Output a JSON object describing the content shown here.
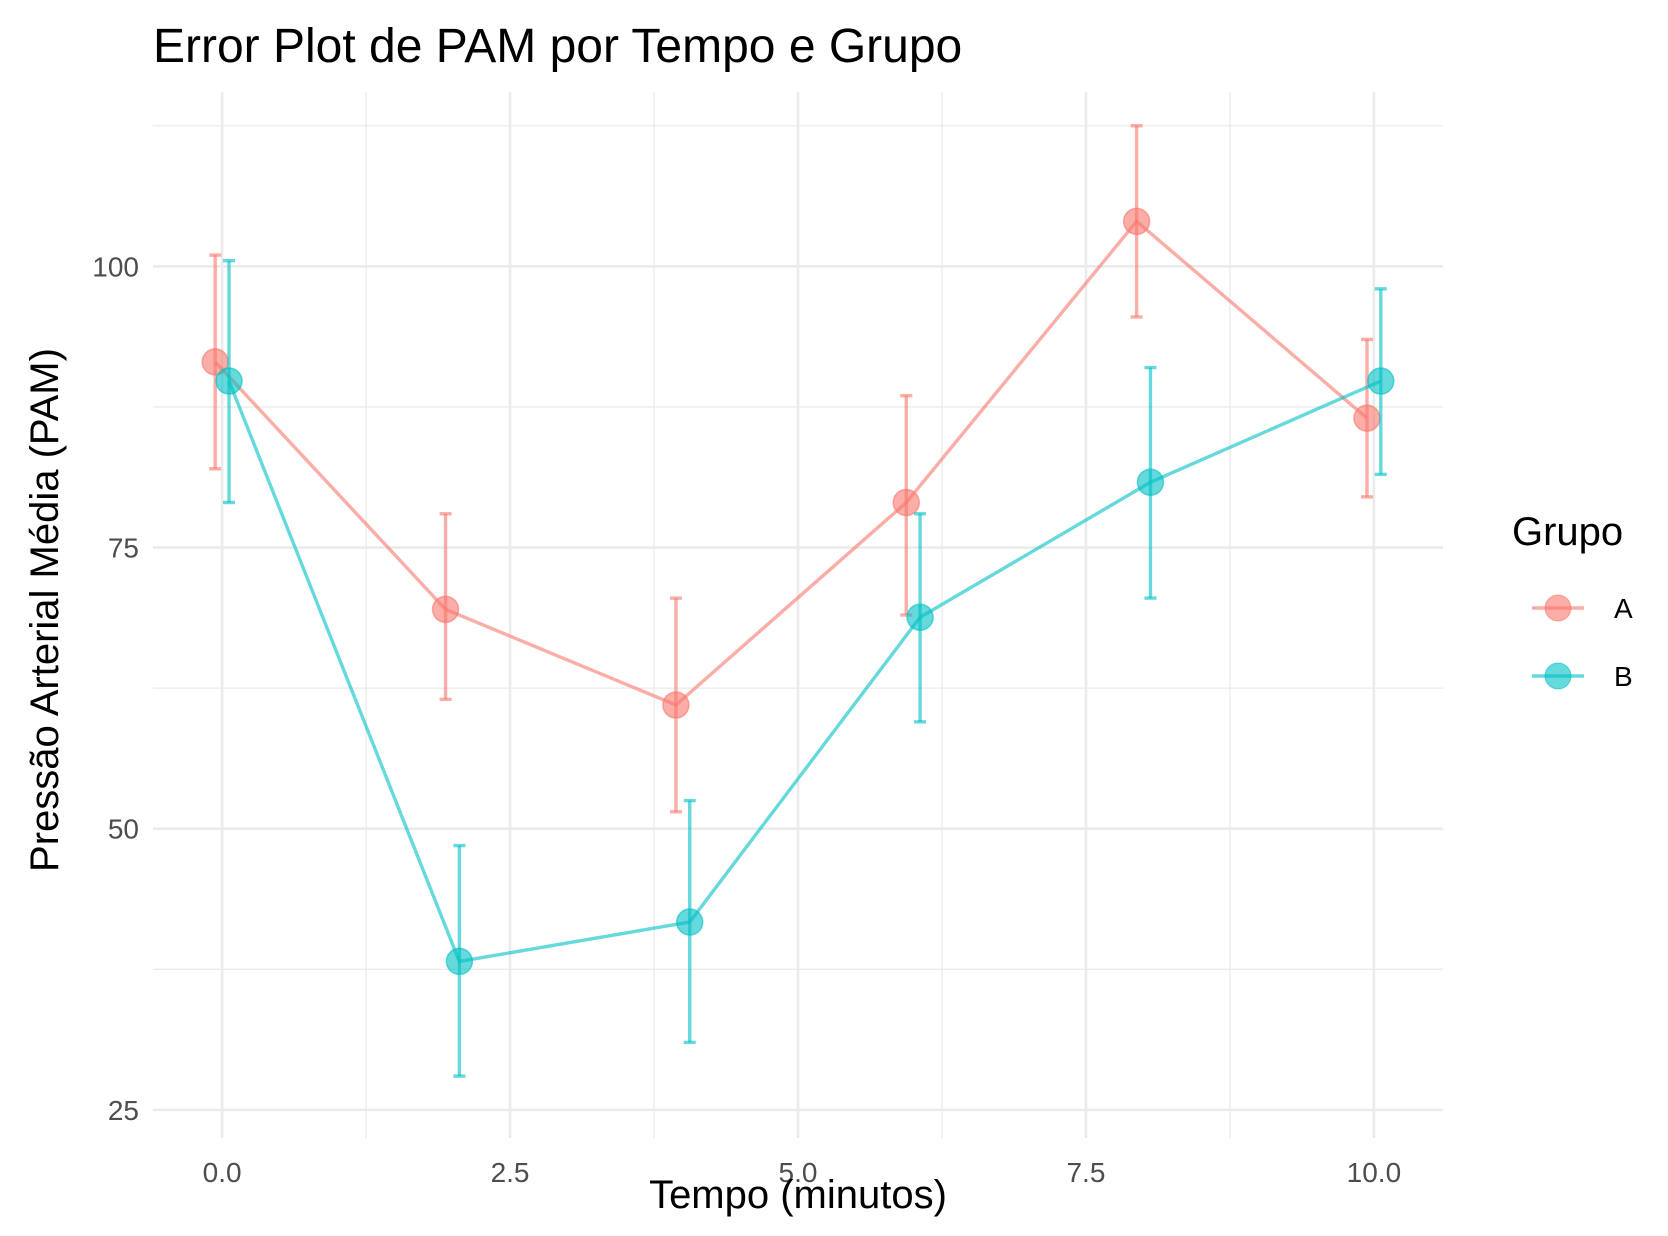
{
  "chart_data": {
    "type": "line",
    "title": "Error Plot de PAM por Tempo e Grupo",
    "xlabel": "Tempo (minutos)",
    "ylabel": "Pressão Arterial Média (PAM)",
    "xlim": [
      -0.6,
      10.6
    ],
    "ylim": [
      22.5,
      115.5
    ],
    "x_ticks": [
      0,
      2.5,
      5,
      7.5,
      10
    ],
    "x_tick_labels": [
      "0.0",
      "2.5",
      "5.0",
      "7.5",
      "10.0"
    ],
    "y_ticks": [
      25,
      50,
      75,
      100
    ],
    "y_tick_labels": [
      "25",
      "50",
      "75",
      "100"
    ],
    "grid": true,
    "legend": {
      "title": "Grupo",
      "position": "right"
    },
    "dodge": 0.12,
    "series": [
      {
        "name": "A",
        "color": "#F8766D",
        "x": [
          0,
          2,
          4,
          6,
          8,
          10
        ],
        "y": [
          91.5,
          69.5,
          61,
          79,
          104,
          86.5
        ],
        "lower": [
          82,
          61.5,
          51.5,
          69,
          95.5,
          79.5
        ],
        "upper": [
          101,
          78,
          70.5,
          88.5,
          112.5,
          93.5
        ]
      },
      {
        "name": "B",
        "color": "#00BFC4",
        "x": [
          0,
          2,
          4,
          6,
          8,
          10
        ],
        "y": [
          89.8,
          38.2,
          41.7,
          68.8,
          80.8,
          89.8
        ],
        "lower": [
          79,
          28,
          31,
          59.5,
          70.5,
          81.5
        ],
        "upper": [
          100.5,
          48.5,
          52.5,
          78,
          91,
          98
        ]
      }
    ]
  }
}
